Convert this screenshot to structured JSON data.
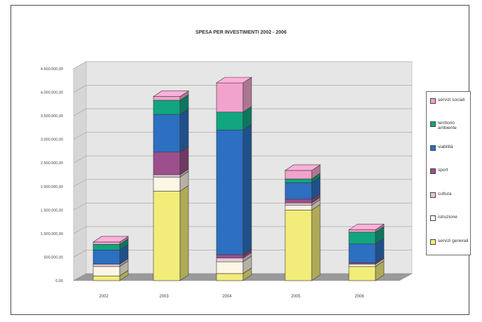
{
  "chart_data": {
    "type": "bar",
    "stacked": true,
    "three_d": true,
    "title": "SPESA PER INVESTIMENTI 2002 - 2006",
    "categories": [
      "2002",
      "2003",
      "2004",
      "2005",
      "2006"
    ],
    "y_ticks": [
      "0,00",
      "500.000,00",
      "1.000.000,00",
      "1.500.000,00",
      "2.000.000,00",
      "2.500.000,00",
      "3.000.000,00",
      "3.500.000,00",
      "4.000.000,00",
      "4.500.000,00"
    ],
    "ylim": [
      0,
      4500000
    ],
    "grid": true,
    "legend_position": "right",
    "series": [
      {
        "name": "servizi generali",
        "color": "#f2ec7a",
        "values": [
          100000,
          1900000,
          150000,
          1500000,
          300000
        ]
      },
      {
        "name": "istruzione",
        "color": "#fdf6e4",
        "values": [
          200000,
          300000,
          250000,
          100000,
          50000
        ]
      },
      {
        "name": "cultura",
        "color": "#e3c9d8",
        "values": [
          50000,
          50000,
          80000,
          50000,
          0
        ]
      },
      {
        "name": "sport",
        "color": "#9c4f8c",
        "values": [
          0,
          480000,
          70000,
          80000,
          30000
        ]
      },
      {
        "name": "viabilità",
        "color": "#2d6fc0",
        "values": [
          300000,
          800000,
          2650000,
          350000,
          400000
        ]
      },
      {
        "name": "territorio ambiente",
        "color": "#11a580",
        "values": [
          120000,
          300000,
          380000,
          80000,
          250000
        ]
      },
      {
        "name": "servizi sociali",
        "color": "#f2a3cb",
        "values": [
          50000,
          80000,
          620000,
          180000,
          50000
        ]
      }
    ]
  }
}
